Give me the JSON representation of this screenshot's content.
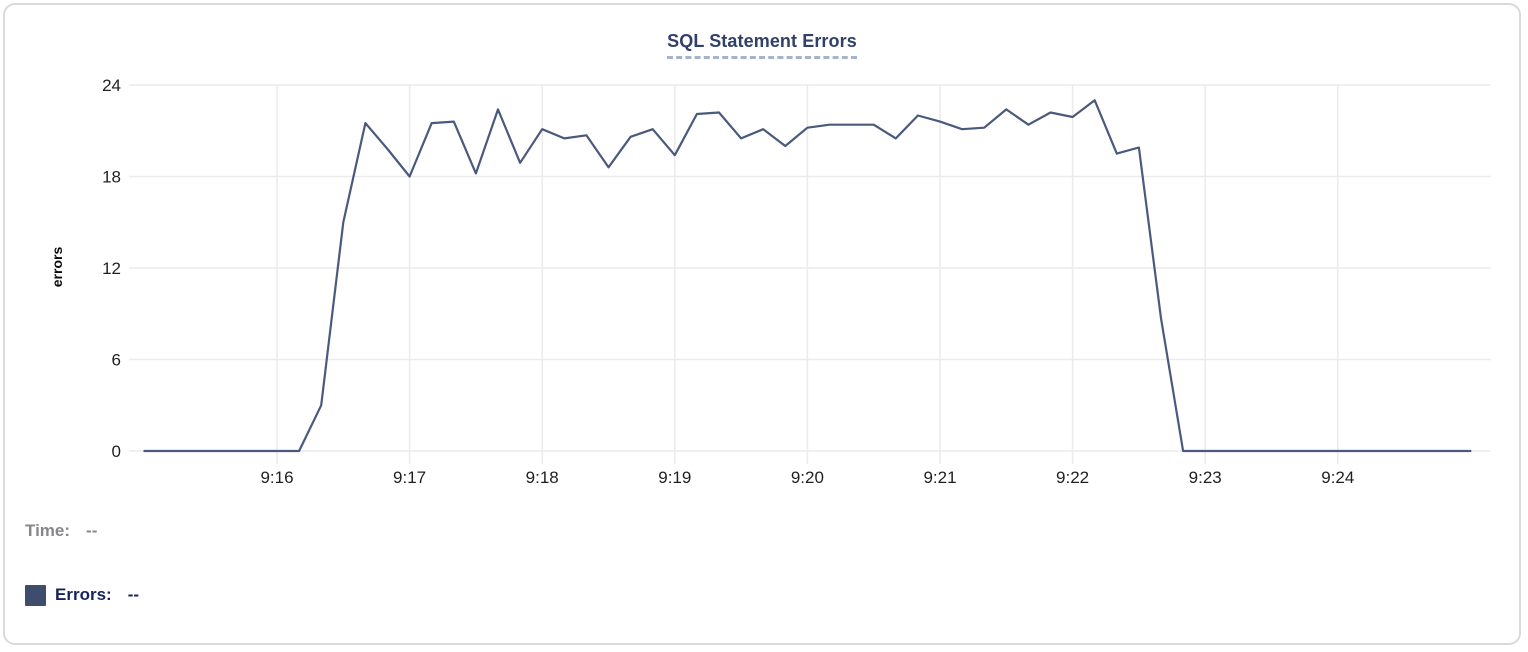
{
  "chart_data": {
    "type": "line",
    "title": "SQL Statement Errors",
    "xlabel": "",
    "ylabel": "errors",
    "ylim": [
      0,
      24
    ],
    "yticks": [
      0,
      6,
      12,
      18,
      24
    ],
    "xtick_labels": [
      "9:16",
      "9:17",
      "9:18",
      "9:19",
      "9:20",
      "9:21",
      "9:22",
      "9:23",
      "9:24"
    ],
    "x_start": "9:15:00",
    "x_end": "9:25:00",
    "grid": true,
    "legend_position": "below-left",
    "series": [
      {
        "name": "Errors",
        "color": "#4a5a7d",
        "x": [
          "9:15:00",
          "9:15:10",
          "9:15:20",
          "9:15:30",
          "9:15:40",
          "9:15:50",
          "9:16:00",
          "9:16:10",
          "9:16:20",
          "9:16:30",
          "9:16:40",
          "9:16:50",
          "9:17:00",
          "9:17:10",
          "9:17:20",
          "9:17:30",
          "9:17:40",
          "9:17:50",
          "9:18:00",
          "9:18:10",
          "9:18:20",
          "9:18:30",
          "9:18:40",
          "9:18:50",
          "9:19:00",
          "9:19:10",
          "9:19:20",
          "9:19:30",
          "9:19:40",
          "9:19:50",
          "9:20:00",
          "9:20:10",
          "9:20:20",
          "9:20:30",
          "9:20:40",
          "9:20:50",
          "9:21:00",
          "9:21:10",
          "9:21:20",
          "9:21:30",
          "9:21:40",
          "9:21:50",
          "9:22:00",
          "9:22:10",
          "9:22:20",
          "9:22:30",
          "9:22:40",
          "9:22:50",
          "9:23:00",
          "9:23:10",
          "9:23:20",
          "9:23:30",
          "9:23:40",
          "9:23:50",
          "9:24:00",
          "9:24:10",
          "9:24:20",
          "9:24:30",
          "9:24:40",
          "9:24:50",
          "9:25:00"
        ],
        "values": [
          0,
          0,
          0,
          0,
          0,
          0,
          0,
          0,
          3,
          15,
          21.5,
          19.8,
          18,
          21.5,
          21.6,
          18.2,
          22.4,
          18.9,
          21.1,
          20.5,
          20.7,
          18.6,
          20.6,
          21.1,
          19.4,
          22.1,
          22.2,
          20.5,
          21.1,
          20,
          21.2,
          21.4,
          21.4,
          21.4,
          20.5,
          22,
          21.6,
          21.1,
          21.2,
          22.4,
          21.4,
          22.2,
          21.9,
          23,
          19.5,
          19.9,
          8.7,
          0,
          0,
          0,
          0,
          0,
          0,
          0,
          0,
          0,
          0,
          0,
          0,
          0,
          0
        ]
      }
    ]
  },
  "tooltip_readout": {
    "time_label": "Time:",
    "time_value": "--",
    "errors_label": "Errors:",
    "errors_value": "--"
  },
  "colors": {
    "line": "#4a5a7d",
    "title_text": "#31406b",
    "title_underline": "#a9b2cc",
    "grid": "#ebebeb",
    "tick_text": "#1f1f1f",
    "time_label_text": "#85878c",
    "errors_label_text": "#172459",
    "swatch_fill": "#3e4d6e",
    "card_border": "#dadada"
  }
}
